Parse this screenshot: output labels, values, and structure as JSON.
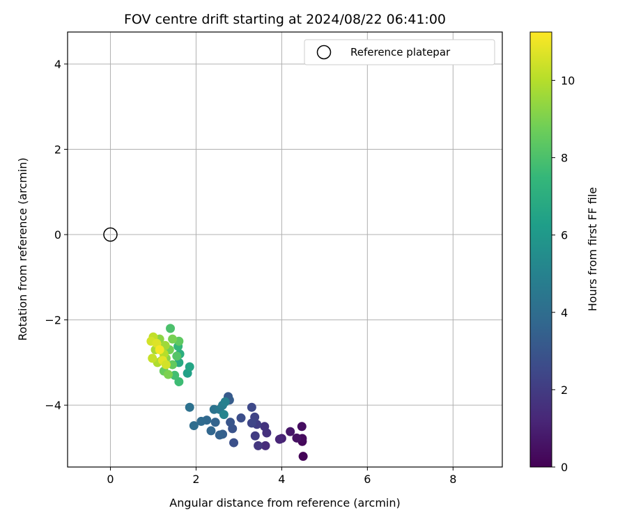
{
  "chart_data": {
    "type": "scatter",
    "title": "FOV centre drift starting at 2024/08/22 06:41:00",
    "xlabel": "Angular distance from reference (arcmin)",
    "ylabel": "Rotation from reference (arcmin)",
    "xlim": [
      -1.0,
      9.15
    ],
    "ylim": [
      -5.45,
      4.75
    ],
    "x_ticks": [
      0,
      2,
      4,
      6,
      8
    ],
    "y_ticks": [
      -4,
      -2,
      0,
      2,
      4
    ],
    "grid": true,
    "legend_position": "top-right",
    "reference": {
      "label": "Reference platepar",
      "x": 0,
      "y": 0
    },
    "colorbar": {
      "label": "Hours from first FF file",
      "min": 0,
      "max": 11.25,
      "ticks": [
        0,
        2,
        4,
        6,
        8,
        10
      ],
      "colormap": [
        "#440154",
        "#482878",
        "#3e4989",
        "#31688e",
        "#26828e",
        "#1f9e89",
        "#35b779",
        "#6ece58",
        "#b5de2b",
        "#fde725"
      ]
    },
    "points": [
      [
        4.5,
        -5.2,
        0.1
      ],
      [
        4.48,
        -4.85,
        0.2
      ],
      [
        4.48,
        -4.78,
        0.3
      ],
      [
        4.47,
        -4.5,
        0.4
      ],
      [
        4.35,
        -4.77,
        0.5
      ],
      [
        4.2,
        -4.62,
        0.7
      ],
      [
        4.0,
        -4.78,
        1.0
      ],
      [
        3.95,
        -4.8,
        1.2
      ],
      [
        3.62,
        -4.95,
        1.4
      ],
      [
        3.65,
        -4.65,
        1.6
      ],
      [
        3.6,
        -4.5,
        1.7
      ],
      [
        3.45,
        -4.95,
        1.8
      ],
      [
        3.38,
        -4.72,
        2.0
      ],
      [
        3.42,
        -4.45,
        2.1
      ],
      [
        3.37,
        -4.28,
        2.3
      ],
      [
        3.3,
        -4.42,
        2.4
      ],
      [
        3.3,
        -4.05,
        2.5
      ],
      [
        3.05,
        -4.3,
        2.7
      ],
      [
        2.88,
        -4.88,
        2.8
      ],
      [
        2.85,
        -4.55,
        2.9
      ],
      [
        2.8,
        -4.4,
        3.0
      ],
      [
        2.75,
        -3.8,
        3.2
      ],
      [
        2.78,
        -3.88,
        3.3
      ],
      [
        2.62,
        -4.68,
        3.4
      ],
      [
        2.55,
        -4.7,
        3.5
      ],
      [
        2.45,
        -4.4,
        3.6
      ],
      [
        2.35,
        -4.6,
        3.7
      ],
      [
        2.25,
        -4.35,
        3.8
      ],
      [
        2.12,
        -4.38,
        3.9
      ],
      [
        1.95,
        -4.48,
        4.0
      ],
      [
        1.85,
        -4.05,
        4.2
      ],
      [
        2.42,
        -4.1,
        4.3
      ],
      [
        2.55,
        -4.1,
        4.5
      ],
      [
        2.62,
        -4.0,
        4.7
      ],
      [
        2.68,
        -3.92,
        4.9
      ],
      [
        2.65,
        -4.22,
        5.1
      ],
      [
        1.8,
        -3.25,
        6.4
      ],
      [
        1.85,
        -3.1,
        6.6
      ],
      [
        1.6,
        -3.0,
        6.8
      ],
      [
        1.62,
        -2.8,
        7.0
      ],
      [
        1.58,
        -2.62,
        7.4
      ],
      [
        1.6,
        -3.45,
        7.7
      ],
      [
        1.5,
        -3.3,
        7.8
      ],
      [
        1.4,
        -2.2,
        8.0
      ],
      [
        1.55,
        -2.85,
        8.2
      ],
      [
        1.6,
        -2.5,
        8.4
      ],
      [
        1.45,
        -3.05,
        8.5
      ],
      [
        1.25,
        -3.2,
        8.6
      ],
      [
        1.38,
        -2.7,
        8.8
      ],
      [
        1.45,
        -2.45,
        8.9
      ],
      [
        1.35,
        -3.28,
        9.0
      ],
      [
        1.3,
        -2.9,
        9.2
      ],
      [
        1.15,
        -2.45,
        9.3
      ],
      [
        1.2,
        -2.95,
        9.4
      ],
      [
        1.28,
        -2.6,
        9.6
      ],
      [
        1.05,
        -2.7,
        9.8
      ],
      [
        1.1,
        -3.0,
        9.9
      ],
      [
        1.25,
        -2.8,
        10.0
      ],
      [
        1.0,
        -2.4,
        10.2
      ],
      [
        0.98,
        -2.9,
        10.3
      ],
      [
        0.95,
        -2.5,
        10.5
      ],
      [
        1.08,
        -2.55,
        10.7
      ],
      [
        1.22,
        -2.95,
        10.8
      ],
      [
        1.3,
        -3.05,
        10.5
      ],
      [
        1.15,
        -2.7,
        11.1
      ]
    ]
  }
}
